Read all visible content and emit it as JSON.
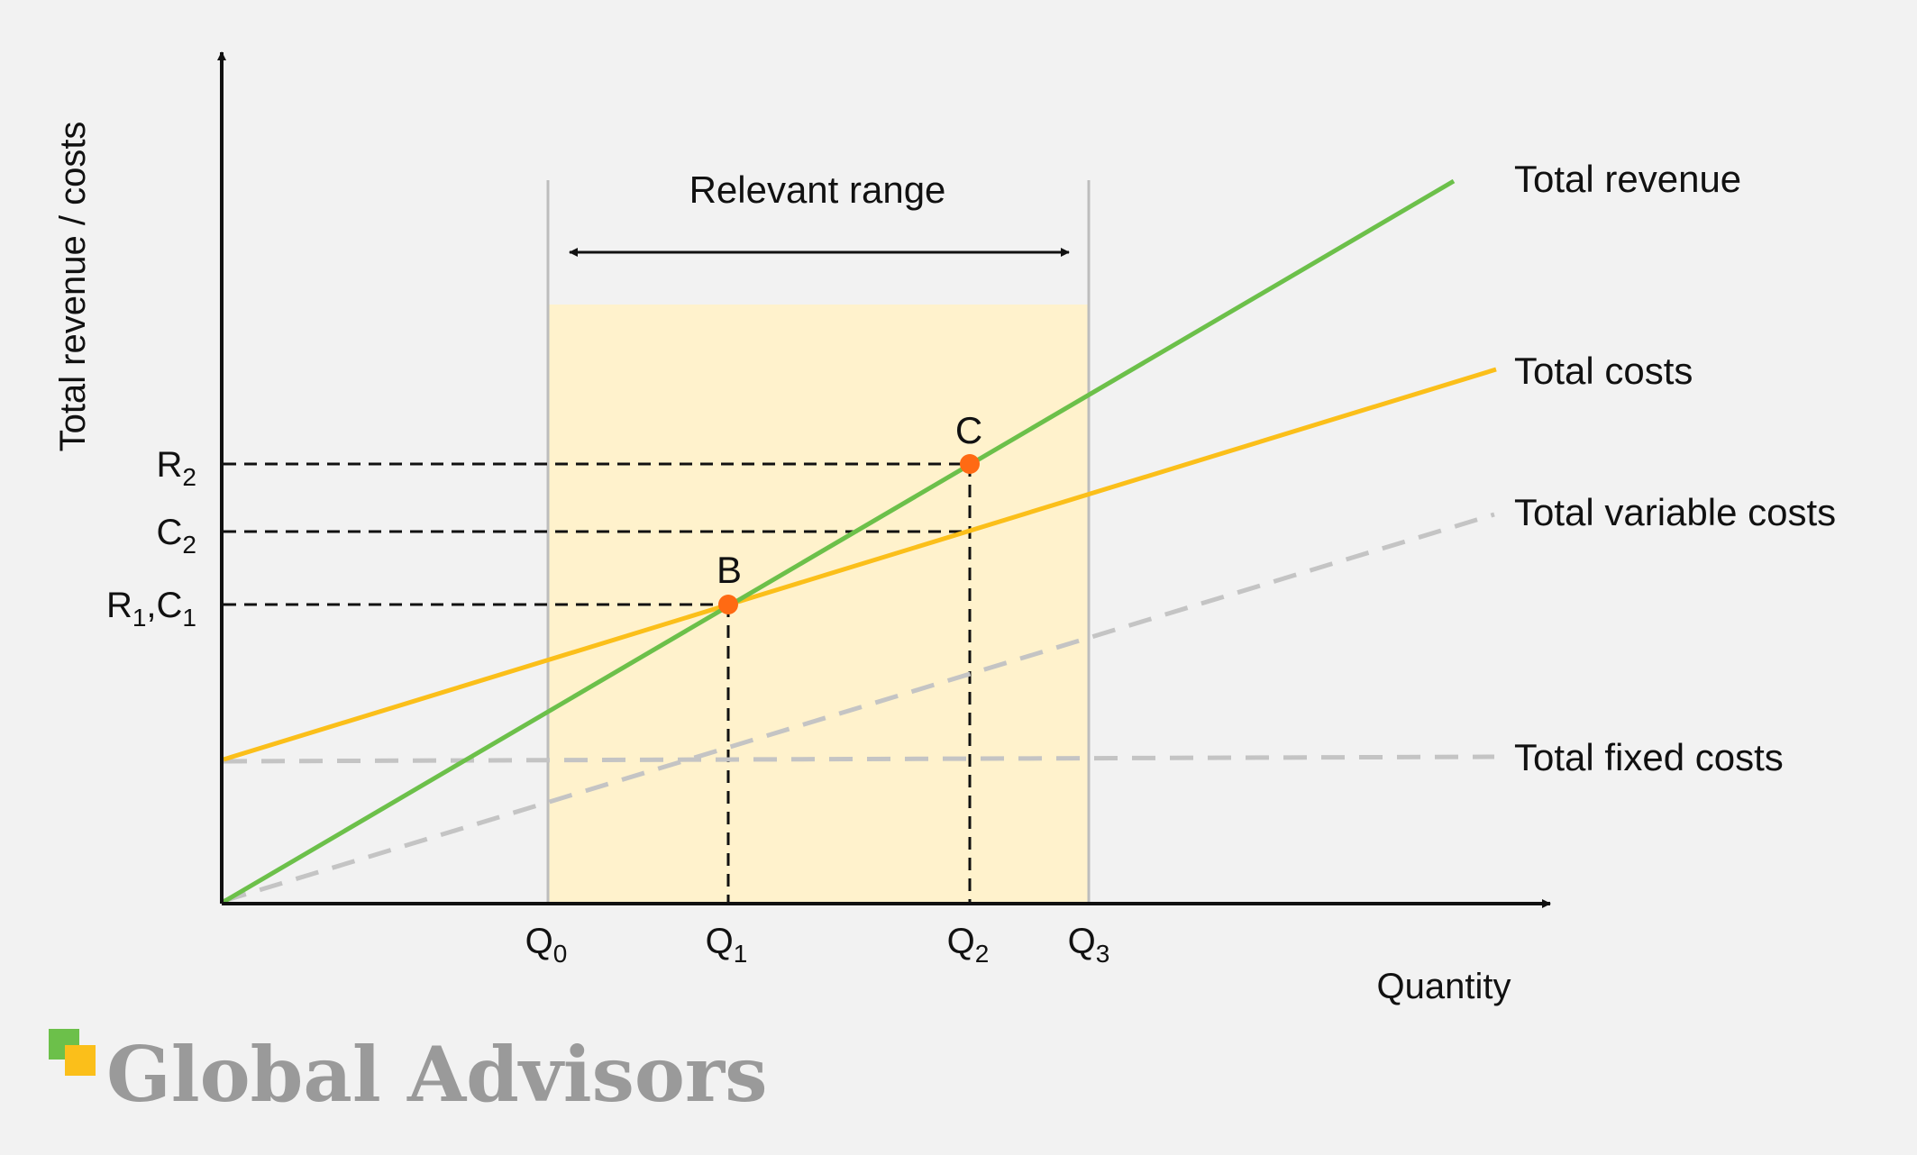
{
  "chart_data": {
    "type": "line",
    "x_axis": {
      "label": "Quantity",
      "ticks": [
        {
          "base": "Q",
          "sub": "0"
        },
        {
          "base": "Q",
          "sub": "1"
        },
        {
          "base": "Q",
          "sub": "2"
        },
        {
          "base": "Q",
          "sub": "3"
        }
      ]
    },
    "y_axis": {
      "label": "Total revenue / costs",
      "ticks": [
        {
          "parts": [
            {
              "base": "R",
              "sub": "2"
            }
          ]
        },
        {
          "parts": [
            {
              "base": "C",
              "sub": "2"
            }
          ]
        },
        {
          "parts": [
            {
              "base": "R",
              "sub": "1"
            },
            {
              "base": ",C",
              "sub": "1"
            }
          ]
        }
      ]
    },
    "relevant_range": {
      "label": "Relevant range",
      "from_tick": 0,
      "to_tick": 3
    },
    "series": [
      {
        "name": "Total revenue",
        "color": "#6cc04a",
        "style": "solid"
      },
      {
        "name": "Total costs",
        "color": "#fbbf1a",
        "style": "solid"
      },
      {
        "name": "Total variable costs",
        "color": "#c4c4c4",
        "style": "dashed"
      },
      {
        "name": "Total fixed costs",
        "color": "#c4c4c4",
        "style": "dashed"
      }
    ],
    "points": [
      {
        "label": "B",
        "at_x_tick": 1,
        "color": "#ff6a13"
      },
      {
        "label": "C",
        "at_x_tick": 2,
        "color": "#ff6a13"
      }
    ],
    "shading_color": "#fff2cc",
    "grid": false,
    "legend": "line-end labels"
  },
  "branding": {
    "name": "Global Advisors",
    "icon_colors": [
      "#6cc04a",
      "#fbbf1a"
    ]
  }
}
